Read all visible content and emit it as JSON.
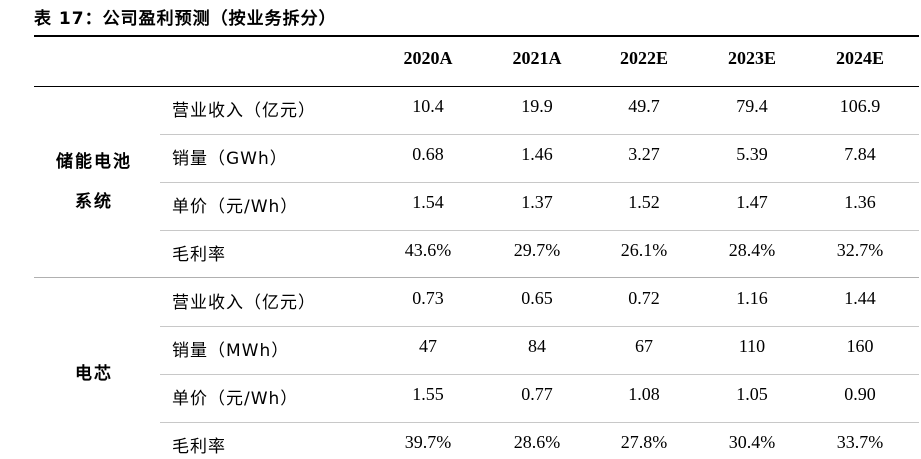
{
  "title": "表 17：公司盈利预测（按业务拆分）",
  "columns": [
    "2020A",
    "2021A",
    "2022E",
    "2023E",
    "2024E"
  ],
  "segments": [
    {
      "name_lines": [
        "储能电池",
        "系统"
      ],
      "rows": [
        {
          "metric": "营业收入（亿元）",
          "values": [
            "10.4",
            "19.9",
            "49.7",
            "79.4",
            "106.9"
          ]
        },
        {
          "metric": "销量（GWh）",
          "values": [
            "0.68",
            "1.46",
            "3.27",
            "5.39",
            "7.84"
          ]
        },
        {
          "metric": "单价（元/Wh）",
          "values": [
            "1.54",
            "1.37",
            "1.52",
            "1.47",
            "1.36"
          ]
        },
        {
          "metric": "毛利率",
          "values": [
            "43.6%",
            "29.7%",
            "26.1%",
            "28.4%",
            "32.7%"
          ]
        }
      ]
    },
    {
      "name_lines": [
        "电芯"
      ],
      "rows": [
        {
          "metric": "营业收入（亿元）",
          "values": [
            "0.73",
            "0.65",
            "0.72",
            "1.16",
            "1.44"
          ]
        },
        {
          "metric": "销量（MWh）",
          "values": [
            "47",
            "84",
            "67",
            "110",
            "160"
          ]
        },
        {
          "metric": "单价（元/Wh）",
          "values": [
            "1.55",
            "0.77",
            "1.08",
            "1.05",
            "0.90"
          ]
        },
        {
          "metric": "毛利率",
          "values": [
            "39.7%",
            "28.6%",
            "27.8%",
            "30.4%",
            "33.7%"
          ]
        }
      ]
    }
  ]
}
